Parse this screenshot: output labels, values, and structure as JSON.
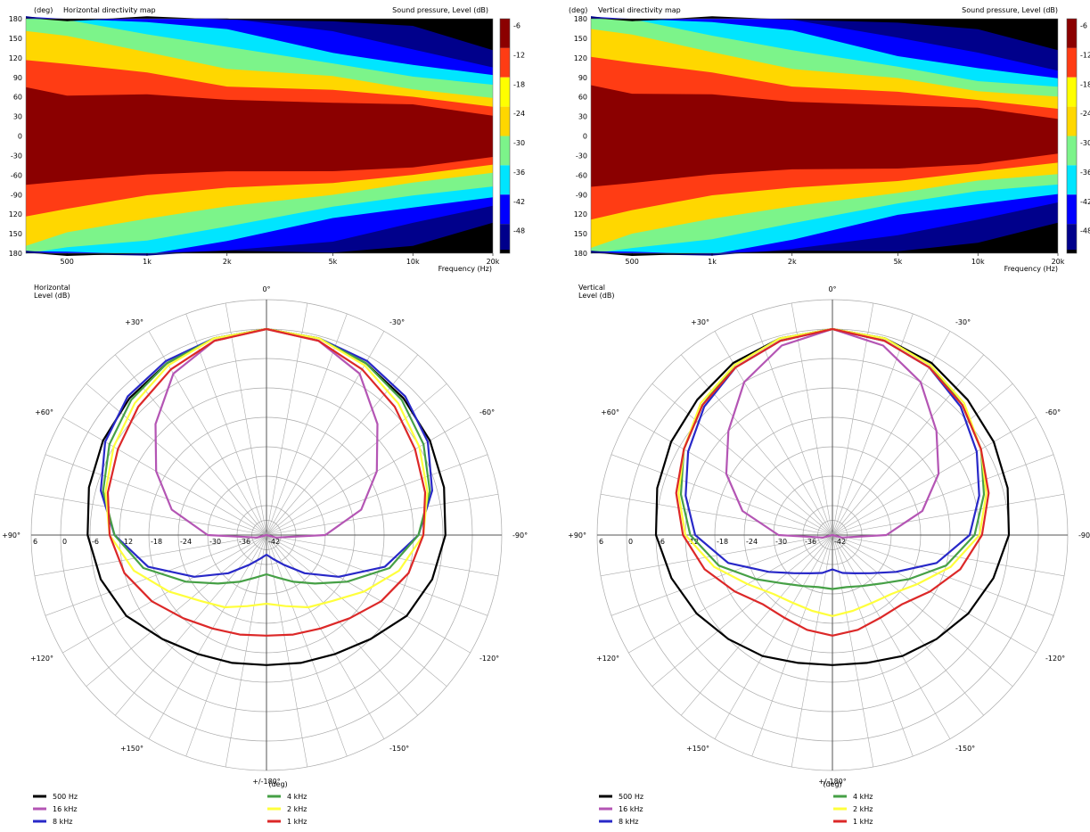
{
  "colors": {
    "levels": [
      "#8b0000",
      "#ff3c14",
      "#ffff00",
      "#ffd700",
      "#7cf48a",
      "#00e5ff",
      "#0000ff",
      "#00008b",
      "#000000"
    ],
    "series": {
      "500 Hz": "#000000",
      "16 kHz": "#b455b4",
      "8 kHz": "#2828c8",
      "4 kHz": "#46a046",
      "2 kHz": "#ffff3c",
      "1 kHz": "#dc2828"
    }
  },
  "maps": [
    {
      "title": "Horizontal directivity map",
      "unit_label": "(deg)",
      "scale_title": "Sound pressure, Level  (dB)",
      "xlabel": "Frequency  (Hz)",
      "y_ticks": [
        "180",
        "150",
        "120",
        "90",
        "60",
        "30",
        "0",
        "-30",
        "-60",
        "-90",
        "120",
        "150",
        "180"
      ],
      "x_ticks": [
        "500",
        "1k",
        "2k",
        "5k",
        "10k",
        "20k"
      ],
      "scale_ticks": [
        "-6",
        "-12",
        "-18",
        "-24",
        "-30",
        "-36",
        "-42",
        "-48"
      ]
    },
    {
      "title": "Vertical directivity map",
      "unit_label": "(deg)",
      "scale_title": "Sound pressure, Level  (dB)",
      "xlabel": "Frequency  (Hz)",
      "y_ticks": [
        "180",
        "150",
        "120",
        "90",
        "60",
        "30",
        "0",
        "-30",
        "-60",
        "-90",
        "120",
        "150",
        "180"
      ],
      "x_ticks": [
        "500",
        "1k",
        "2k",
        "5k",
        "10k",
        "20k"
      ],
      "scale_ticks": [
        "-6",
        "-12",
        "-18",
        "-24",
        "-30",
        "-36",
        "-42",
        "-48"
      ]
    }
  ],
  "polars": [
    {
      "title_line1": "Horizontal",
      "title_line2": "Level  (dB)",
      "angle_labels": [
        "0°",
        "-30°",
        "-60°",
        "-90°",
        "-120°",
        "-150°",
        "+/-180°",
        "+150°",
        "+120°",
        "+90°",
        "+60°",
        "+30°"
      ],
      "bottom_unit": "(deg)",
      "ring_labels": [
        "6",
        "0",
        "-6",
        "-12",
        "-18",
        "-24",
        "-30",
        "-36",
        "-42"
      ],
      "legend": [
        "500 Hz",
        "16 kHz",
        "8 kHz",
        "4 kHz",
        "2 kHz",
        "1 kHz"
      ]
    },
    {
      "title_line1": "Vertical",
      "title_line2": "Level  (dB)",
      "angle_labels": [
        "0°",
        "-30°",
        "-60°",
        "-90°",
        "-120°",
        "-150°",
        "+/-180°",
        "+150°",
        "+120°",
        "+90°",
        "+60°",
        "+30°"
      ],
      "bottom_unit": "(deg)",
      "ring_labels": [
        "6",
        "0",
        "-6",
        "-12",
        "-18",
        "-24",
        "-30",
        "-36",
        "-42"
      ],
      "legend": [
        "500 Hz",
        "16 kHz",
        "8 kHz",
        "4 kHz",
        "2 kHz",
        "1 kHz"
      ]
    }
  ],
  "chart_data": [
    {
      "type": "heatmap",
      "title": "Horizontal directivity map",
      "xlabel": "Frequency  (Hz)",
      "ylabel": "(deg)",
      "xscale": "log",
      "xlim": [
        350,
        20000
      ],
      "ylim": [
        -180,
        180
      ],
      "color_levels_db": [
        -6,
        -12,
        -18,
        -24,
        -30,
        -36,
        -42,
        -48
      ],
      "contour_boundaries_deg": {
        "x_hz": [
          350,
          500,
          1000,
          2000,
          5000,
          10000,
          20000
        ],
        "-6": [
          75,
          65,
          60,
          58,
          52,
          45,
          35
        ],
        "-12": [
          120,
          110,
          95,
          80,
          68,
          60,
          48
        ],
        "-18": [
          165,
          150,
          130,
          105,
          88,
          75,
          58
        ],
        "-24": [
          180,
          175,
          160,
          135,
          110,
          95,
          75
        ],
        "-30": [
          180,
          180,
          178,
          160,
          130,
          110,
          90
        ],
        "-36": [
          180,
          180,
          180,
          178,
          165,
          130,
          105
        ],
        "-42": [
          180,
          180,
          180,
          180,
          178,
          165,
          135
        ]
      }
    },
    {
      "type": "heatmap",
      "title": "Vertical directivity map",
      "xlabel": "Frequency  (Hz)",
      "ylabel": "(deg)",
      "xscale": "log",
      "xlim": [
        350,
        20000
      ],
      "ylim": [
        -180,
        180
      ],
      "color_levels_db": [
        -6,
        -12,
        -18,
        -24,
        -30,
        -36,
        -42,
        -48
      ],
      "contour_boundaries_deg": {
        "x_hz": [
          350,
          500,
          1000,
          2000,
          5000,
          10000,
          20000
        ],
        "-6": [
          78,
          68,
          60,
          55,
          48,
          40,
          30
        ],
        "-12": [
          125,
          112,
          95,
          80,
          65,
          55,
          45
        ],
        "-18": [
          168,
          152,
          130,
          105,
          85,
          72,
          60
        ],
        "-24": [
          180,
          176,
          158,
          130,
          105,
          88,
          72
        ],
        "-30": [
          180,
          180,
          178,
          158,
          125,
          105,
          85
        ],
        "-36": [
          180,
          180,
          180,
          176,
          155,
          125,
          100
        ],
        "-42": [
          180,
          180,
          180,
          180,
          176,
          160,
          135
        ]
      }
    },
    {
      "type": "line",
      "title": "Horizontal",
      "coordinate": "polar",
      "angle_deg": [
        0,
        15,
        30,
        45,
        60,
        75,
        90,
        105,
        120,
        135,
        150,
        165,
        180
      ],
      "radial_range_db": [
        -42,
        6
      ],
      "series": [
        {
          "name": "500 Hz",
          "values": [
            0,
            -0.5,
            -1.5,
            -2.5,
            -3.5,
            -4.5,
            -5.5,
            -7,
            -9,
            -12,
            -14,
            -15,
            -15.5
          ]
        },
        {
          "name": "16 kHz",
          "values": [
            0,
            -1,
            -4,
            -10,
            -16,
            -22,
            -30,
            -40,
            -42,
            -42,
            -42,
            -42,
            -42
          ]
        },
        {
          "name": "8 kHz",
          "values": [
            0,
            -0.5,
            -1,
            -2,
            -4,
            -7,
            -11,
            -17,
            -25,
            -31,
            -35,
            -37,
            -38
          ]
        },
        {
          "name": "4 kHz",
          "values": [
            0,
            -0.5,
            -1.5,
            -3,
            -5,
            -7.5,
            -11,
            -16,
            -23,
            -28,
            -31,
            -33,
            -34
          ]
        },
        {
          "name": "2 kHz",
          "values": [
            0,
            -0.5,
            -2,
            -4,
            -6,
            -8,
            -10,
            -14,
            -19,
            -23,
            -25,
            -27,
            -28
          ]
        },
        {
          "name": "1 kHz",
          "values": [
            0,
            -1,
            -3,
            -5,
            -7,
            -8.5,
            -10,
            -12,
            -15,
            -18,
            -20,
            -21,
            -21.5
          ]
        }
      ]
    },
    {
      "type": "line",
      "title": "Vertical",
      "coordinate": "polar",
      "angle_deg": [
        0,
        15,
        30,
        45,
        60,
        75,
        90,
        105,
        120,
        135,
        150,
        165,
        180
      ],
      "radial_range_db": [
        -42,
        6
      ],
      "series": [
        {
          "name": "500 Hz",
          "values": [
            0,
            -0.5,
            -1.5,
            -3,
            -4,
            -5,
            -6,
            -8,
            -10,
            -12,
            -13.5,
            -15,
            -15.5
          ]
        },
        {
          "name": "16 kHz",
          "values": [
            0,
            -2,
            -6,
            -12,
            -17,
            -23,
            -31,
            -40,
            -42,
            -42,
            -42,
            -42,
            -42
          ]
        },
        {
          "name": "8 kHz",
          "values": [
            0,
            -1,
            -2.5,
            -5,
            -8,
            -11,
            -14,
            -20,
            -27,
            -31,
            -33,
            -34,
            -35
          ]
        },
        {
          "name": "4 kHz",
          "values": [
            0,
            -0.5,
            -2,
            -4.5,
            -7,
            -10,
            -13,
            -18,
            -24,
            -28,
            -30,
            -31,
            -31
          ]
        },
        {
          "name": "2 kHz",
          "values": [
            0,
            -0.5,
            -2,
            -4,
            -7,
            -9.5,
            -12,
            -17,
            -22,
            -25,
            -26,
            -26,
            -25.5
          ]
        },
        {
          "name": "1 kHz",
          "values": [
            0,
            -1,
            -2.5,
            -4.5,
            -7,
            -9,
            -11.5,
            -15,
            -19,
            -22,
            -22.5,
            -22,
            -21.5
          ]
        }
      ]
    }
  ]
}
